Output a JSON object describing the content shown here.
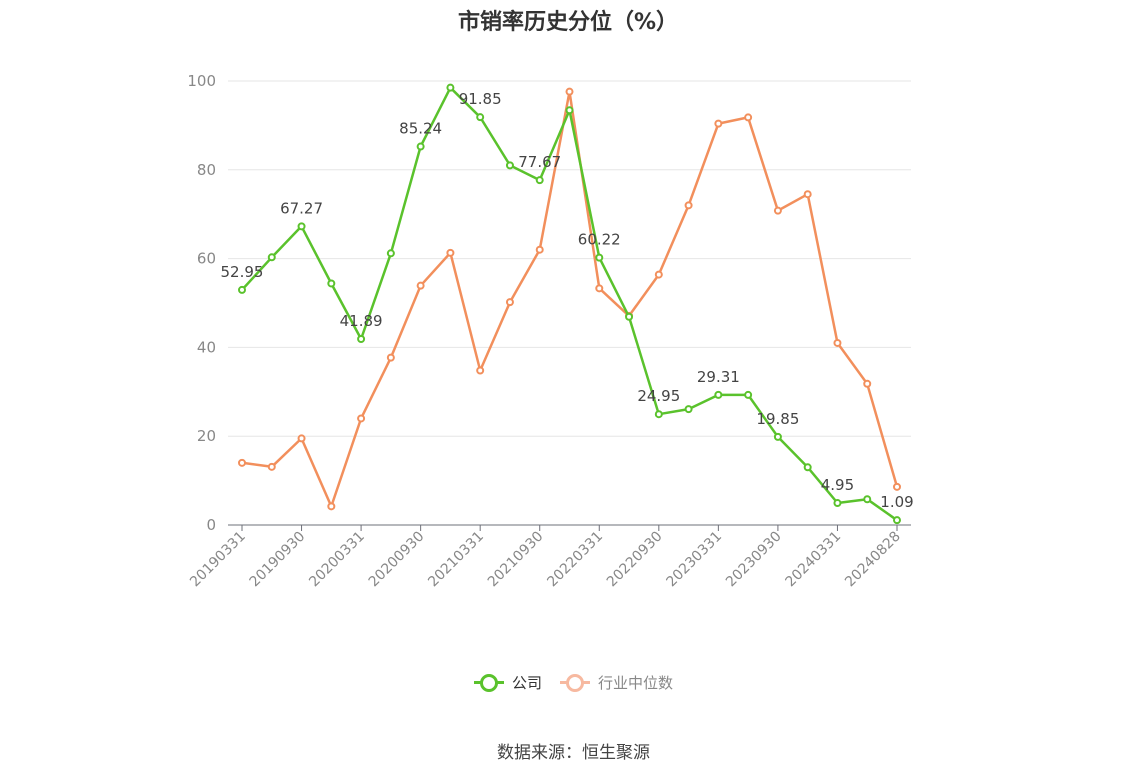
{
  "title": "市销率历史分位（%）",
  "source": "数据来源：恒生聚源",
  "chart_data": {
    "type": "line",
    "x": [
      "20190331",
      "20190630",
      "20190930",
      "20191231",
      "20200331",
      "20200630",
      "20200930",
      "20201231",
      "20210331",
      "20210630",
      "20210930",
      "20211231",
      "20220331",
      "20220630",
      "20220930",
      "20221231",
      "20230331",
      "20230630",
      "20230930",
      "20231231",
      "20240331",
      "20240630",
      "20240828"
    ],
    "x_tick_labels": [
      "20190331",
      "20190930",
      "20200331",
      "20200930",
      "20210331",
      "20210930",
      "20220331",
      "20220930",
      "20230331",
      "20230930",
      "20240331",
      "20240828"
    ],
    "y_ticks": [
      "0",
      "20",
      "40",
      "60",
      "80",
      "100"
    ],
    "ylim": [
      0,
      100
    ],
    "grid": true,
    "legend_position": "bottom",
    "series": [
      {
        "name": "公司",
        "color": "#5ac22c",
        "values": [
          52.95,
          60.3,
          67.27,
          54.4,
          41.89,
          61.2,
          85.24,
          98.5,
          91.85,
          81.0,
          77.67,
          93.4,
          60.22,
          46.9,
          24.95,
          26.1,
          29.31,
          29.3,
          19.85,
          13.0,
          4.95,
          5.8,
          1.09
        ],
        "labels": [
          "52.95",
          "",
          "67.27",
          "",
          "41.89",
          "",
          "85.24",
          "",
          "91.85",
          "",
          "77.67",
          "",
          "60.22",
          "",
          "24.95",
          "",
          "29.31",
          "",
          "19.85",
          "",
          "4.95",
          "",
          "1.09"
        ]
      },
      {
        "name": "行业中位数",
        "color": "#f28f5c",
        "legend_color": "#f7b9a0",
        "values": [
          14.0,
          13.1,
          19.5,
          4.2,
          24.0,
          37.7,
          53.9,
          61.3,
          34.8,
          50.2,
          62.0,
          97.6,
          53.3,
          47.1,
          56.4,
          72.0,
          90.4,
          91.8,
          70.8,
          74.5,
          41.0,
          31.8,
          8.6
        ]
      }
    ]
  }
}
